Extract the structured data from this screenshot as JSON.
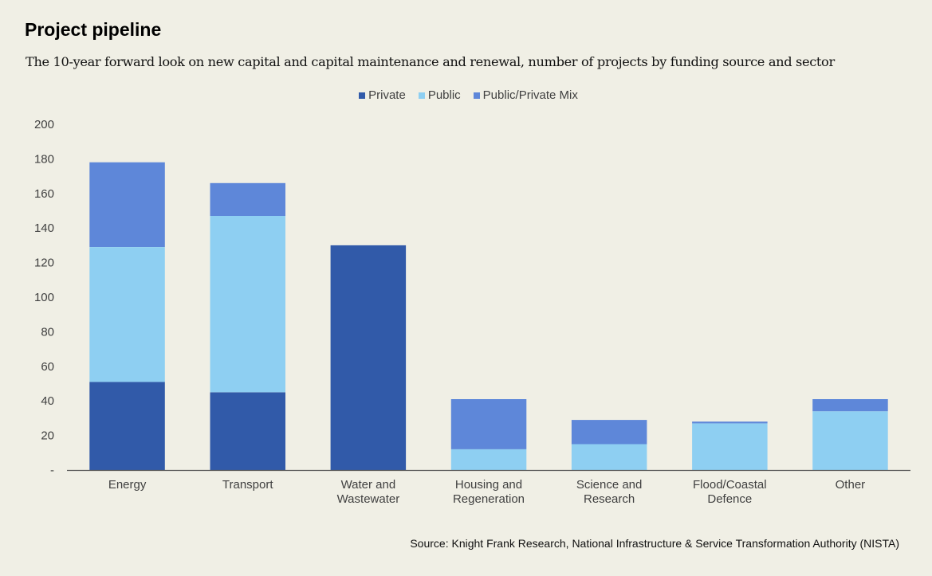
{
  "header": {
    "title": "Project pipeline",
    "subtitle": "The 10-year forward look on new capital and capital maintenance and renewal, number of projects by funding source and sector"
  },
  "footer": {
    "source": "Source: Knight Frank Research, National Infrastructure & Service Transformation Authority (NISTA)"
  },
  "chart_data": {
    "type": "bar",
    "stacked": true,
    "title": "Project pipeline",
    "subtitle": "The 10-year forward look on new capital and capital maintenance and renewal, number of projects by funding source and sector",
    "xlabel": "",
    "ylabel": "",
    "ylim": [
      0,
      200
    ],
    "yticks": [
      0,
      20,
      40,
      60,
      80,
      100,
      120,
      140,
      160,
      180,
      200
    ],
    "ytick_labels": [
      "-",
      "20",
      "40",
      "60",
      "80",
      "100",
      "120",
      "140",
      "160",
      "180",
      "200"
    ],
    "grid": false,
    "legend_position": "top-center",
    "categories": [
      [
        "Energy"
      ],
      [
        "Transport"
      ],
      [
        "Water and",
        "Wastewater"
      ],
      [
        "Housing and",
        "Regeneration"
      ],
      [
        "Science and",
        "Research"
      ],
      [
        "Flood/Coastal",
        "Defence"
      ],
      [
        "Other"
      ]
    ],
    "series": [
      {
        "name": "Private",
        "color": "#315aa9",
        "values": [
          51,
          45,
          130,
          0,
          0,
          0,
          0
        ]
      },
      {
        "name": "Public",
        "color": "#8ecff2",
        "values": [
          78,
          102,
          0,
          12,
          15,
          27,
          34
        ]
      },
      {
        "name": "Public/Private Mix",
        "color": "#5e87d9",
        "values": [
          49,
          19,
          0,
          29,
          14,
          1,
          7
        ]
      }
    ],
    "source": "Source: Knight Frank Research, National Infrastructure & Service Transformation Authority (NISTA)"
  }
}
